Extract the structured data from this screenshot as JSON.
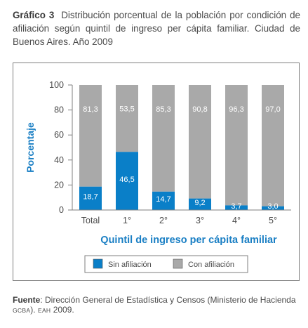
{
  "title": {
    "number": "Gráfico 3",
    "text": "Distribución porcentual de la población por condición de afiliación según quintil de ingreso per cápita familiar. Ciudad de Buenos Aires. Año 2009"
  },
  "chart_data": {
    "type": "bar",
    "stacked": true,
    "categories": [
      "Total",
      "1°",
      "2°",
      "3°",
      "4°",
      "5°"
    ],
    "series": [
      {
        "name": "Sin afiliación",
        "values": [
          18.7,
          46.5,
          14.7,
          9.2,
          3.7,
          3.0
        ],
        "labels": [
          "18,7",
          "46,5",
          "14,7",
          "9,2",
          "3,7",
          "3,0"
        ]
      },
      {
        "name": "Con afiliación",
        "values": [
          81.3,
          53.5,
          85.3,
          90.8,
          96.3,
          97.0
        ],
        "labels": [
          "81,3",
          "53,5",
          "85,3",
          "90,8",
          "96,3",
          "97,0"
        ]
      }
    ],
    "xlabel": "Quintil de ingreso per cápita familiar",
    "ylabel": "Porcentaje",
    "ylim": [
      0,
      100
    ],
    "yticks": [
      "0",
      "20",
      "40",
      "60",
      "80",
      "100"
    ],
    "legend_position": "bottom",
    "colors": {
      "Sin afiliación": "#0a7fc8",
      "Con afiliación": "#a9a9a9",
      "axis_label": "#1a7fc4"
    }
  },
  "source": {
    "label": "Fuente",
    "text_a": ": Dirección General de Estadística y Censos (Ministerio de Hacienda ",
    "gcba": "GCBA",
    "text_b": "). ",
    "eah": "EAH",
    "text_c": " 2009."
  }
}
